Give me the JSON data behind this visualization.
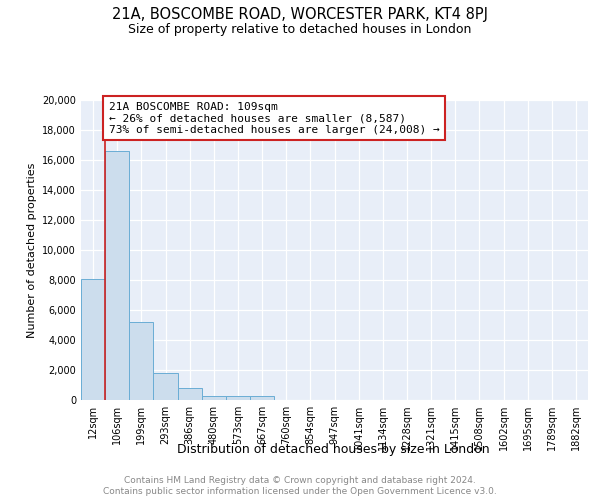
{
  "title": "21A, BOSCOMBE ROAD, WORCESTER PARK, KT4 8PJ",
  "subtitle": "Size of property relative to detached houses in London",
  "xlabel": "Distribution of detached houses by size in London",
  "ylabel": "Number of detached properties",
  "categories": [
    "12sqm",
    "106sqm",
    "199sqm",
    "293sqm",
    "386sqm",
    "480sqm",
    "573sqm",
    "667sqm",
    "760sqm",
    "854sqm",
    "947sqm",
    "1041sqm",
    "1134sqm",
    "1228sqm",
    "1321sqm",
    "1415sqm",
    "1508sqm",
    "1602sqm",
    "1695sqm",
    "1789sqm",
    "1882sqm"
  ],
  "values": [
    8100,
    16600,
    5200,
    1800,
    800,
    300,
    300,
    300,
    0,
    0,
    0,
    0,
    0,
    0,
    0,
    0,
    0,
    0,
    0,
    0,
    0
  ],
  "bar_color": "#ccdded",
  "bar_edge_color": "#6aadd5",
  "property_line_color": "#cc2222",
  "property_line_at_bar_index": 1,
  "annotation_line1": "21A BOSCOMBE ROAD: 109sqm",
  "annotation_line2": "← 26% of detached houses are smaller (8,587)",
  "annotation_line3": "73% of semi-detached houses are larger (24,008) →",
  "annotation_box_facecolor": "#ffffff",
  "annotation_box_edgecolor": "#cc2222",
  "ylim": [
    0,
    20000
  ],
  "yticks": [
    0,
    2000,
    4000,
    6000,
    8000,
    10000,
    12000,
    14000,
    16000,
    18000,
    20000
  ],
  "chart_bg_color": "#e8eef8",
  "grid_color": "#ffffff",
  "footer_line1": "Contains HM Land Registry data © Crown copyright and database right 2024.",
  "footer_line2": "Contains public sector information licensed under the Open Government Licence v3.0.",
  "title_fontsize": 10.5,
  "subtitle_fontsize": 9,
  "xlabel_fontsize": 9,
  "ylabel_fontsize": 8,
  "tick_fontsize": 7,
  "annotation_fontsize": 8,
  "footer_fontsize": 6.5
}
